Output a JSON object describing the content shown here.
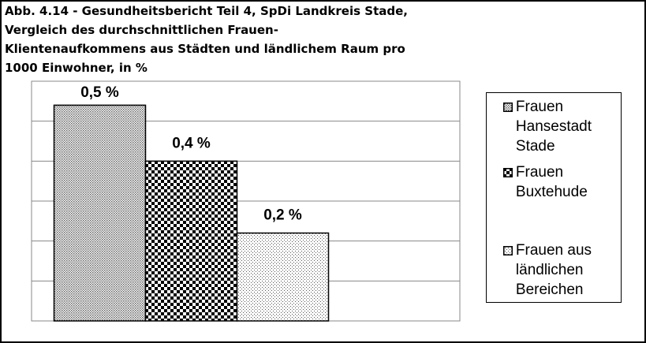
{
  "chart_data": {
    "type": "bar",
    "title": "Abb. 4.14 - Gesundheitsbericht Teil 4, SpDi Landkreis Stade,\nVergleich des durchschnittlichen Frauen-\nKlientenaufkommens aus Städten und ländlichem Raum pro\n1000 Einwohner, in %",
    "categories": [
      null
    ],
    "series": [
      {
        "name": "Frauen Hansestadt Stade",
        "color": "#000000",
        "pattern": "dense-dots",
        "values": [
          0.54
        ],
        "value_labels": [
          "0,5 %"
        ]
      },
      {
        "name": "Frauen Buxtehude",
        "color": "#000000",
        "pattern": "checker",
        "values": [
          0.4
        ],
        "value_labels": [
          "0,4 %"
        ]
      },
      {
        "name": "Frauen aus ländlichen Bereichen",
        "color": "#000000",
        "pattern": "sparse-dots",
        "values": [
          0.22
        ],
        "value_labels": [
          "0,2 %"
        ]
      }
    ],
    "ylim": [
      0,
      0.6
    ],
    "yticks": [
      0,
      0.1,
      0.2,
      0.3,
      0.4,
      0.5,
      0.6
    ],
    "grid": true,
    "legend": "right"
  }
}
